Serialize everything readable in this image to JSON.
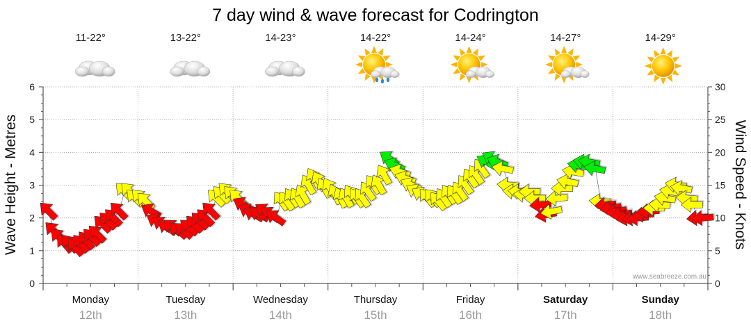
{
  "title": "7 day wind & wave forecast for Codrington",
  "credit": "www.seabreeze.com.au",
  "left_axis_label": "Wave Height - Metres",
  "right_axis_label": "Wind Speed - Knots",
  "days": [
    {
      "name": "Monday",
      "date": "12th",
      "temp": "11-22°",
      "icon": "cloudy-icon",
      "bold": false
    },
    {
      "name": "Tuesday",
      "date": "13th",
      "temp": "13-22°",
      "icon": "cloudy-icon",
      "bold": false
    },
    {
      "name": "Wednesday",
      "date": "14th",
      "temp": "14-23°",
      "icon": "cloudy-icon",
      "bold": false
    },
    {
      "name": "Thursday",
      "date": "15th",
      "temp": "14-22°",
      "icon": "sun-cloud-rain-icon",
      "bold": false
    },
    {
      "name": "Friday",
      "date": "16th",
      "temp": "14-24°",
      "icon": "partly-cloudy-icon",
      "bold": false
    },
    {
      "name": "Saturday",
      "date": "17th",
      "temp": "14-27°",
      "icon": "partly-cloudy-icon",
      "bold": true
    },
    {
      "name": "Sunday",
      "date": "18th",
      "temp": "14-29°",
      "icon": "sunny-icon",
      "bold": true
    }
  ],
  "colors": {
    "red": "#ff0000",
    "yellow": "#ffff00",
    "green": "#00ee00",
    "grid": "#999999"
  },
  "chart_data": {
    "type": "scatter",
    "marker": "wind-direction-arrow",
    "left_axis": {
      "label": "Wave Height - Metres",
      "range": [
        0,
        6
      ],
      "ticks": [
        0,
        1,
        2,
        3,
        4,
        5,
        6
      ]
    },
    "right_axis": {
      "label": "Wind Speed - Knots",
      "range": [
        0,
        30
      ],
      "ticks": [
        0,
        5,
        10,
        15,
        20,
        25,
        30
      ]
    },
    "x_categories": [
      "Monday 12th",
      "Tuesday 13th",
      "Wednesday 14th",
      "Thursday 15th",
      "Friday 16th",
      "Saturday 17th",
      "Sunday 18th"
    ],
    "wind_speed_knots": [
      11,
      8,
      7,
      6,
      6,
      5.5,
      6,
      6.5,
      7,
      7.5,
      9,
      9.5,
      10,
      11,
      14,
      14,
      13,
      13,
      12.5,
      11,
      9.5,
      9,
      8.5,
      8.5,
      8,
      8,
      8.5,
      9,
      9.5,
      10,
      11,
      13,
      13.5,
      14,
      13.5,
      13,
      12,
      11,
      10.5,
      10.5,
      11,
      10.5,
      10,
      12.5,
      12.5,
      13,
      13,
      13.5,
      15,
      16,
      15.5,
      14.5,
      14.5,
      13.5,
      13,
      13,
      13.5,
      13,
      13,
      14,
      15,
      15,
      16.5,
      19,
      18,
      17,
      16,
      15,
      14,
      13.5,
      13,
      13,
      12.5,
      13,
      13.5,
      13.5,
      14,
      15,
      16,
      16.5,
      17.5,
      18.5,
      19,
      18.5,
      17.5,
      15,
      14,
      14,
      13.5,
      14,
      13,
      12,
      10.5,
      11,
      13,
      14.5,
      15.5,
      17,
      18,
      18.5,
      18.5,
      17.5,
      12.5,
      12,
      11.5,
      11,
      10.5,
      10,
      10,
      10,
      10.5,
      11,
      11.5,
      12,
      13,
      14,
      15,
      14.5,
      13,
      12,
      10,
      10
    ],
    "wind_colors": [
      "red",
      "red",
      "red",
      "red",
      "red",
      "red",
      "red",
      "red",
      "red",
      "red",
      "red",
      "red",
      "red",
      "red",
      "yellow",
      "yellow",
      "yellow",
      "yellow",
      "yellow",
      "red",
      "red",
      "red",
      "red",
      "red",
      "red",
      "red",
      "red",
      "red",
      "red",
      "red",
      "red",
      "yellow",
      "yellow",
      "yellow",
      "yellow",
      "yellow",
      "red",
      "red",
      "red",
      "red",
      "red",
      "red",
      "red",
      "yellow",
      "yellow",
      "yellow",
      "yellow",
      "yellow",
      "yellow",
      "yellow",
      "yellow",
      "yellow",
      "yellow",
      "yellow",
      "yellow",
      "yellow",
      "yellow",
      "yellow",
      "yellow",
      "yellow",
      "yellow",
      "yellow",
      "yellow",
      "green",
      "green",
      "yellow",
      "yellow",
      "yellow",
      "yellow",
      "yellow",
      "yellow",
      "yellow",
      "yellow",
      "yellow",
      "yellow",
      "yellow",
      "yellow",
      "yellow",
      "yellow",
      "yellow",
      "yellow",
      "green",
      "green",
      "green",
      "yellow",
      "yellow",
      "yellow",
      "yellow",
      "yellow",
      "yellow",
      "yellow",
      "red",
      "red",
      "yellow",
      "yellow",
      "yellow",
      "yellow",
      "yellow",
      "green",
      "green",
      "green",
      "green",
      "yellow",
      "red",
      "red",
      "red",
      "red",
      "red",
      "red",
      "red",
      "red",
      "red",
      "yellow",
      "yellow",
      "yellow",
      "yellow",
      "yellow",
      "yellow",
      "yellow",
      "yellow",
      "red",
      "red"
    ],
    "wind_dir_deg": [
      135,
      135,
      135,
      140,
      140,
      140,
      140,
      140,
      135,
      135,
      135,
      135,
      135,
      135,
      135,
      135,
      135,
      135,
      135,
      120,
      120,
      125,
      125,
      130,
      130,
      130,
      130,
      135,
      135,
      135,
      135,
      135,
      135,
      135,
      135,
      135,
      120,
      120,
      120,
      120,
      125,
      125,
      125,
      145,
      145,
      145,
      150,
      150,
      150,
      150,
      150,
      150,
      150,
      155,
      155,
      150,
      145,
      145,
      145,
      145,
      145,
      150,
      150,
      125,
      115,
      110,
      110,
      115,
      120,
      120,
      140,
      140,
      140,
      145,
      145,
      145,
      145,
      145,
      145,
      145,
      145,
      120,
      120,
      110,
      100,
      95,
      95,
      95,
      95,
      90,
      90,
      85,
      80,
      80,
      85,
      90,
      100,
      100,
      100,
      100,
      100,
      100,
      95,
      85,
      80,
      80,
      80,
      80,
      80,
      85,
      85,
      85,
      90,
      95,
      100,
      100,
      100,
      100,
      95,
      90,
      85,
      85
    ]
  }
}
